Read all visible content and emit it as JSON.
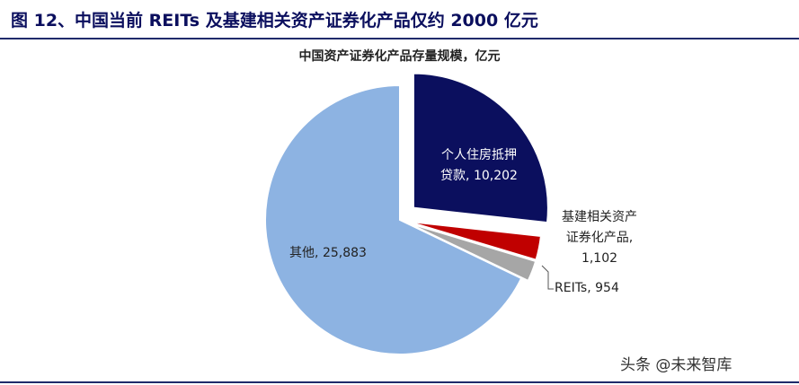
{
  "header": {
    "title": "图 12、中国当前 REITs 及基建相关资产证券化产品仅约 2000 亿元"
  },
  "chart_data": {
    "type": "pie",
    "title": "中国资产证券化产品存量规模，亿元",
    "categories": [
      "个人住房抵押贷款",
      "基建相关资产证券化产品",
      "REITs",
      "其他"
    ],
    "values": [
      10202,
      1102,
      954,
      25883
    ],
    "value_labels": [
      "10,202",
      "1,102",
      "954",
      "25,883"
    ],
    "label_separator": ", ",
    "colors": [
      "#0b0f5e",
      "#c00000",
      "#a6a6a6",
      "#8db3e2"
    ]
  },
  "watermark": "头条 @未来智库"
}
